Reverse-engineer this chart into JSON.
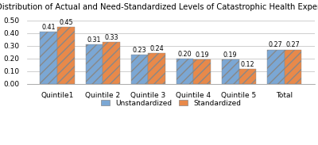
{
  "title": "Distribution of Actual and Need-Standardized Levels of Catastrophic Health Expenditure",
  "categories": [
    "Quintile1",
    "Quintile 2",
    "Quintile 3",
    "Quintile 4",
    "Quintile 5",
    "Total"
  ],
  "unstandardized": [
    0.41,
    0.31,
    0.23,
    0.2,
    0.19,
    0.27
  ],
  "standardized": [
    0.45,
    0.33,
    0.24,
    0.19,
    0.12,
    0.27
  ],
  "bar_color_unstd": "#7BA7D4",
  "bar_color_std": "#E8894A",
  "ylim": [
    0,
    0.55
  ],
  "yticks": [
    0.0,
    0.1,
    0.2,
    0.3,
    0.4,
    0.5
  ],
  "legend_unstd": "Unstandardized",
  "legend_std": "Standardized",
  "title_fontsize": 7.2,
  "tick_fontsize": 6.5,
  "label_fontsize": 5.8,
  "legend_fontsize": 6.5,
  "background_color": "#FFFFFF",
  "grid_color": "#BBBBBB"
}
